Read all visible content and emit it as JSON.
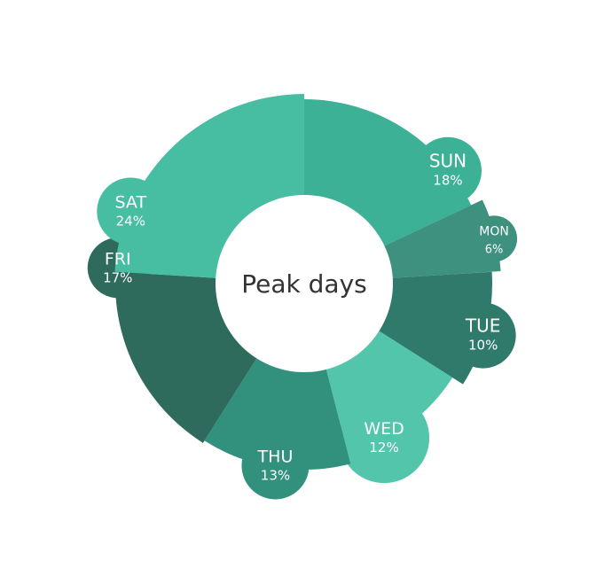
{
  "chart_data": {
    "type": "pie",
    "title": "Peak days",
    "categories": [
      "SUN",
      "MON",
      "TUE",
      "WED",
      "THU",
      "FRI",
      "SAT"
    ],
    "values": [
      18,
      6,
      10,
      12,
      13,
      17,
      24
    ],
    "value_labels": [
      "18%",
      "6%",
      "10%",
      "12%",
      "13%",
      "17%",
      "24%"
    ],
    "colors": [
      "#3db196",
      "#3d917e",
      "#2f7a6a",
      "#52c5aa",
      "#31917c",
      "#2f6b5c",
      "#47bea2"
    ],
    "units": "%"
  }
}
